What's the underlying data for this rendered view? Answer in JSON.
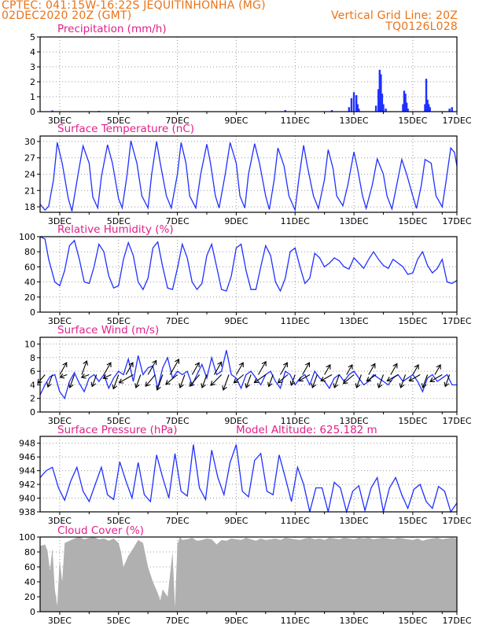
{
  "header": {
    "station": "CPTEC:   041:15W-16:22S   JEQUITINHONHA (MG)",
    "date": "02DEC2020 20Z (GMT)",
    "grid_note": "Vertical Grid Line: 20Z",
    "code": "TQ0126L028"
  },
  "colors": {
    "header": "#e8741a",
    "title": "#e0208a",
    "line": "#2030ff",
    "bars": "#2030ff",
    "cloud": "#b0b0b0",
    "arrow": "#000000"
  },
  "x_axis": {
    "start": "02DEC2020 20Z",
    "hours_span": 340,
    "ticks": [
      {
        "label": "3DEC",
        "hour": 16
      },
      {
        "label": "5DEC",
        "hour": 64
      },
      {
        "label": "7DEC",
        "hour": 112
      },
      {
        "label": "9DEC",
        "hour": 160
      },
      {
        "label": "11DEC",
        "hour": 208
      },
      {
        "label": "13DEC",
        "hour": 256
      },
      {
        "label": "15DEC",
        "hour": 304
      },
      {
        "label": "17DEC",
        "hour": 340
      }
    ]
  },
  "chart_data": [
    {
      "type": "bar",
      "title": "Precipitation (mm/h)",
      "ylim": [
        0,
        5
      ],
      "yticks": [
        0,
        1,
        2,
        3,
        4,
        5
      ],
      "x": [
        10,
        48,
        200,
        238,
        252,
        254,
        256,
        258,
        259,
        260,
        274,
        276,
        277,
        278,
        279,
        280,
        282,
        296,
        297,
        298,
        299,
        300,
        314,
        315,
        316,
        317,
        318,
        334,
        336
      ],
      "values": [
        0.08,
        0.05,
        0.1,
        0.1,
        0.3,
        0.9,
        1.3,
        1.1,
        0.5,
        0.2,
        0.4,
        1.5,
        2.8,
        2.5,
        1.2,
        0.5,
        0.2,
        0.5,
        1.4,
        1.2,
        0.6,
        0.2,
        0.5,
        2.2,
        0.8,
        0.5,
        0.3,
        0.2,
        0.3
      ]
    },
    {
      "type": "line",
      "title": "Surface Temperature (nC)",
      "ylim": [
        17,
        31
      ],
      "yticks": [
        18,
        21,
        24,
        27,
        30
      ],
      "x": [
        0,
        4,
        7,
        11,
        14,
        18,
        23,
        26,
        31,
        35,
        40,
        43,
        47,
        50,
        55,
        59,
        64,
        67,
        71,
        74,
        79,
        83,
        88,
        91,
        95,
        98,
        103,
        107,
        112,
        115,
        119,
        122,
        127,
        131,
        136,
        139,
        143,
        146,
        151,
        155,
        160,
        163,
        167,
        170,
        175,
        179,
        184,
        187,
        191,
        194,
        199,
        203,
        208,
        211,
        215,
        218,
        223,
        227,
        232,
        235,
        239,
        242,
        247,
        251,
        256,
        259,
        263,
        266,
        271,
        275,
        280,
        283,
        287,
        290,
        295,
        299,
        304,
        307,
        311,
        314,
        319,
        323,
        328,
        331,
        335,
        338,
        340
      ],
      "values": [
        18.5,
        17.4,
        18.1,
        23,
        29.8,
        26,
        19.5,
        17.2,
        24,
        29.2,
        26,
        19.8,
        17.8,
        23.5,
        29.4,
        26,
        19.5,
        17.8,
        24,
        30.1,
        26,
        20,
        17.8,
        24,
        30,
        26,
        20,
        17.8,
        24,
        29.8,
        26,
        20,
        17.8,
        24,
        29.5,
        26,
        20,
        17.8,
        24,
        29.8,
        26,
        20,
        17.8,
        24,
        29.6,
        26,
        20,
        17.5,
        23,
        28.8,
        25.5,
        20,
        17.4,
        23,
        29.3,
        25.5,
        20,
        17.7,
        23,
        28.5,
        25,
        20,
        18.2,
        22,
        28.1,
        25,
        20,
        17.7,
        22,
        26.8,
        24,
        20,
        17.6,
        21,
        26.7,
        24,
        20,
        17.7,
        22,
        26.7,
        26,
        20,
        18,
        22.5,
        28.8,
        28,
        25.5
      ],
      "xlabel": "",
      "ylabel": ""
    },
    {
      "type": "line",
      "title": "Relative Humidity (%)",
      "ylim": [
        0,
        100
      ],
      "yticks": [
        0,
        20,
        40,
        60,
        80,
        100
      ],
      "x": [
        0,
        4,
        7,
        12,
        16,
        20,
        24,
        28,
        32,
        36,
        40,
        44,
        48,
        52,
        56,
        60,
        64,
        68,
        72,
        76,
        80,
        84,
        88,
        92,
        96,
        100,
        104,
        108,
        112,
        116,
        120,
        124,
        128,
        132,
        136,
        140,
        144,
        148,
        152,
        156,
        160,
        164,
        168,
        172,
        176,
        180,
        184,
        188,
        192,
        196,
        200,
        204,
        208,
        212,
        216,
        220,
        224,
        228,
        232,
        236,
        240,
        244,
        248,
        252,
        256,
        260,
        264,
        268,
        272,
        276,
        280,
        284,
        288,
        292,
        296,
        300,
        304,
        308,
        312,
        316,
        320,
        324,
        328,
        332,
        336,
        340
      ],
      "values": [
        100,
        97,
        70,
        40,
        35,
        55,
        88,
        95,
        70,
        40,
        38,
        60,
        90,
        80,
        48,
        32,
        35,
        70,
        92,
        75,
        40,
        30,
        45,
        85,
        93,
        60,
        32,
        30,
        58,
        90,
        72,
        40,
        30,
        38,
        75,
        90,
        60,
        30,
        28,
        48,
        85,
        90,
        55,
        30,
        30,
        60,
        88,
        75,
        40,
        28,
        45,
        80,
        85,
        60,
        38,
        45,
        78,
        72,
        60,
        65,
        72,
        68,
        60,
        57,
        72,
        65,
        58,
        70,
        80,
        70,
        62,
        58,
        70,
        65,
        60,
        50,
        52,
        70,
        80,
        62,
        52,
        58,
        70,
        40,
        38,
        42
      ],
      "xlabel": "",
      "ylabel": ""
    },
    {
      "type": "line",
      "title": "Surface Wind (m/s)",
      "ylim": [
        0,
        11
      ],
      "yticks": [
        0,
        2,
        4,
        6,
        8,
        10
      ],
      "x": [
        0,
        4,
        8,
        12,
        16,
        20,
        24,
        28,
        32,
        36,
        40,
        44,
        48,
        52,
        56,
        60,
        64,
        68,
        72,
        76,
        80,
        84,
        88,
        92,
        96,
        100,
        104,
        108,
        112,
        116,
        120,
        124,
        128,
        132,
        136,
        140,
        144,
        148,
        152,
        156,
        160,
        164,
        168,
        172,
        176,
        180,
        184,
        188,
        192,
        196,
        200,
        204,
        208,
        212,
        216,
        220,
        224,
        228,
        232,
        236,
        240,
        244,
        248,
        252,
        256,
        260,
        264,
        268,
        272,
        276,
        280,
        284,
        288,
        292,
        296,
        300,
        304,
        308,
        312,
        316,
        320,
        324,
        328,
        332,
        336,
        340
      ],
      "values": [
        2.5,
        4.0,
        5.2,
        5.5,
        3.0,
        2.0,
        4.5,
        5.8,
        4.2,
        3.0,
        5.0,
        5.5,
        4.5,
        5.5,
        3.5,
        5.0,
        6.0,
        5.5,
        7.8,
        4.5,
        8.3,
        5.5,
        6.5,
        6.8,
        3.5,
        6.5,
        8.0,
        5.0,
        6.0,
        5.5,
        6.0,
        4.0,
        5.5,
        7.0,
        5.0,
        8.0,
        5.5,
        6.0,
        9.1,
        5.5,
        5.0,
        3.5,
        5.5,
        6.0,
        5.0,
        4.0,
        5.5,
        6.0,
        4.5,
        3.5,
        6.0,
        5.5,
        4.0,
        5.0,
        5.5,
        4.0,
        6.0,
        5.0,
        4.5,
        3.5,
        5.0,
        5.5,
        4.5,
        5.5,
        6.0,
        5.0,
        4.0,
        4.5,
        5.5,
        5.0,
        4.5,
        4.0,
        5.0,
        5.5,
        4.5,
        5.0,
        5.5,
        4.5,
        3.0,
        5.0,
        5.5,
        4.5,
        5.0,
        5.5,
        4.0,
        4.0
      ],
      "arrows": {
        "x": [
          4,
          10,
          16,
          22,
          28,
          34,
          40,
          46,
          52,
          58,
          64,
          70,
          76,
          82,
          88,
          94,
          100,
          106,
          112,
          118,
          124,
          130,
          136,
          142,
          148,
          154,
          160,
          166,
          172,
          178,
          184,
          190,
          196,
          202,
          208,
          214,
          220,
          226,
          232,
          238,
          244,
          250,
          256,
          262,
          268,
          274,
          280,
          286,
          292,
          298,
          304,
          310,
          316,
          322,
          328,
          334
        ],
        "speed": [
          4.5,
          5.2,
          5.5,
          3.0,
          5.5,
          5.8,
          3.2,
          5.0,
          5.5,
          3.5,
          6.0,
          5.5,
          6.5,
          5.5,
          6.5,
          6.0,
          6.5,
          7.0,
          6.0,
          5.5,
          5.5,
          6.0,
          5.5,
          5.8,
          6.0,
          6.5,
          5.5,
          5.0,
          5.5,
          6.0,
          5.5,
          5.0,
          5.5,
          5.0,
          4.5,
          5.5,
          5.0,
          5.5,
          4.5,
          5.0,
          5.5,
          4.5,
          5.5,
          5.5,
          5.0,
          4.5,
          5.5,
          5.0,
          5.0,
          5.5,
          4.5,
          5.0,
          5.5,
          4.5,
          5.5,
          5.0
        ],
        "dir_deg": [
          220,
          200,
          30,
          250,
          200,
          20,
          250,
          200,
          30,
          245,
          200,
          30,
          240,
          200,
          30,
          220,
          200,
          30,
          230,
          200,
          30,
          220,
          200,
          30,
          225,
          200,
          30,
          230,
          200,
          30,
          235,
          200,
          30,
          230,
          200,
          30,
          240,
          200,
          30,
          240,
          200,
          30,
          230,
          200,
          30,
          235,
          200,
          30,
          240,
          200,
          30,
          240,
          200,
          30,
          240,
          200
        ]
      },
      "xlabel": "",
      "ylabel": ""
    },
    {
      "type": "line",
      "title": "Surface Pressure (hPa)",
      "subtitle": "Model Altitude: 625.182 m",
      "ylim": [
        938,
        949
      ],
      "yticks": [
        938,
        940,
        942,
        944,
        946,
        948
      ],
      "x": [
        0,
        5,
        10,
        15,
        20,
        25,
        30,
        35,
        40,
        45,
        50,
        55,
        60,
        65,
        70,
        75,
        80,
        85,
        90,
        95,
        100,
        105,
        110,
        115,
        120,
        125,
        130,
        135,
        140,
        145,
        150,
        155,
        160,
        165,
        170,
        175,
        180,
        185,
        190,
        195,
        200,
        205,
        210,
        215,
        220,
        225,
        230,
        235,
        240,
        245,
        250,
        255,
        260,
        265,
        270,
        275,
        280,
        285,
        290,
        295,
        300,
        305,
        310,
        315,
        320,
        325,
        330,
        335,
        340
      ],
      "values": [
        943,
        944,
        944.5,
        941.5,
        939.7,
        942.5,
        944.5,
        941,
        939.5,
        942,
        944.5,
        940.5,
        939.8,
        945.3,
        942.5,
        940,
        945.2,
        940.5,
        939.5,
        946.3,
        943,
        940,
        946.5,
        941,
        940.3,
        947.8,
        941.5,
        939.8,
        947,
        943,
        940.5,
        945.2,
        947.8,
        941,
        940.2,
        945.5,
        946.5,
        941,
        940.5,
        946.3,
        943,
        939.5,
        944.5,
        942,
        938,
        941.5,
        941.5,
        938,
        942.3,
        941.5,
        938,
        941,
        941.8,
        938.2,
        941.5,
        943,
        938,
        941.5,
        943,
        940.5,
        938.5,
        941.3,
        942,
        939.5,
        938.5,
        941.7,
        941,
        938,
        939.3
      ],
      "xlabel": "",
      "ylabel": ""
    },
    {
      "type": "area",
      "title": "Cloud Cover (%)",
      "ylim": [
        0,
        100
      ],
      "yticks": [
        0,
        20,
        40,
        60,
        80,
        100
      ],
      "x": [
        0,
        4,
        6,
        8,
        10,
        12,
        14,
        16,
        18,
        20,
        24,
        28,
        32,
        36,
        40,
        44,
        48,
        52,
        56,
        60,
        64,
        66,
        68,
        72,
        76,
        80,
        84,
        88,
        92,
        96,
        98,
        100,
        104,
        108,
        110,
        112,
        114,
        116,
        120,
        124,
        128,
        132,
        136,
        140,
        144,
        148,
        152,
        156,
        160,
        164,
        168,
        172,
        176,
        180,
        184,
        188,
        192,
        196,
        200,
        204,
        208,
        212,
        216,
        220,
        224,
        228,
        232,
        236,
        240,
        244,
        248,
        252,
        256,
        260,
        264,
        268,
        272,
        276,
        280,
        284,
        288,
        292,
        296,
        300,
        304,
        308,
        312,
        316,
        320,
        324,
        328,
        332,
        336,
        340
      ],
      "values": [
        88,
        90,
        82,
        55,
        85,
        30,
        8,
        70,
        40,
        92,
        95,
        98,
        100,
        97,
        99,
        100,
        97,
        98,
        95,
        98,
        92,
        80,
        60,
        75,
        85,
        96,
        92,
        60,
        40,
        25,
        15,
        30,
        20,
        80,
        6,
        90,
        100,
        96,
        97,
        99,
        95,
        96,
        98,
        97,
        90,
        96,
        95,
        98,
        97,
        96,
        99,
        97,
        95,
        98,
        96,
        97,
        98,
        96,
        99,
        98,
        97,
        96,
        98,
        99,
        97,
        98,
        96,
        99,
        98,
        97,
        99,
        98,
        97,
        99,
        98,
        99,
        97,
        98,
        99,
        98,
        97,
        99,
        98,
        97,
        96,
        98,
        95,
        97,
        98,
        99,
        97,
        98,
        99,
        98
      ],
      "xlabel": "",
      "ylabel": ""
    }
  ]
}
